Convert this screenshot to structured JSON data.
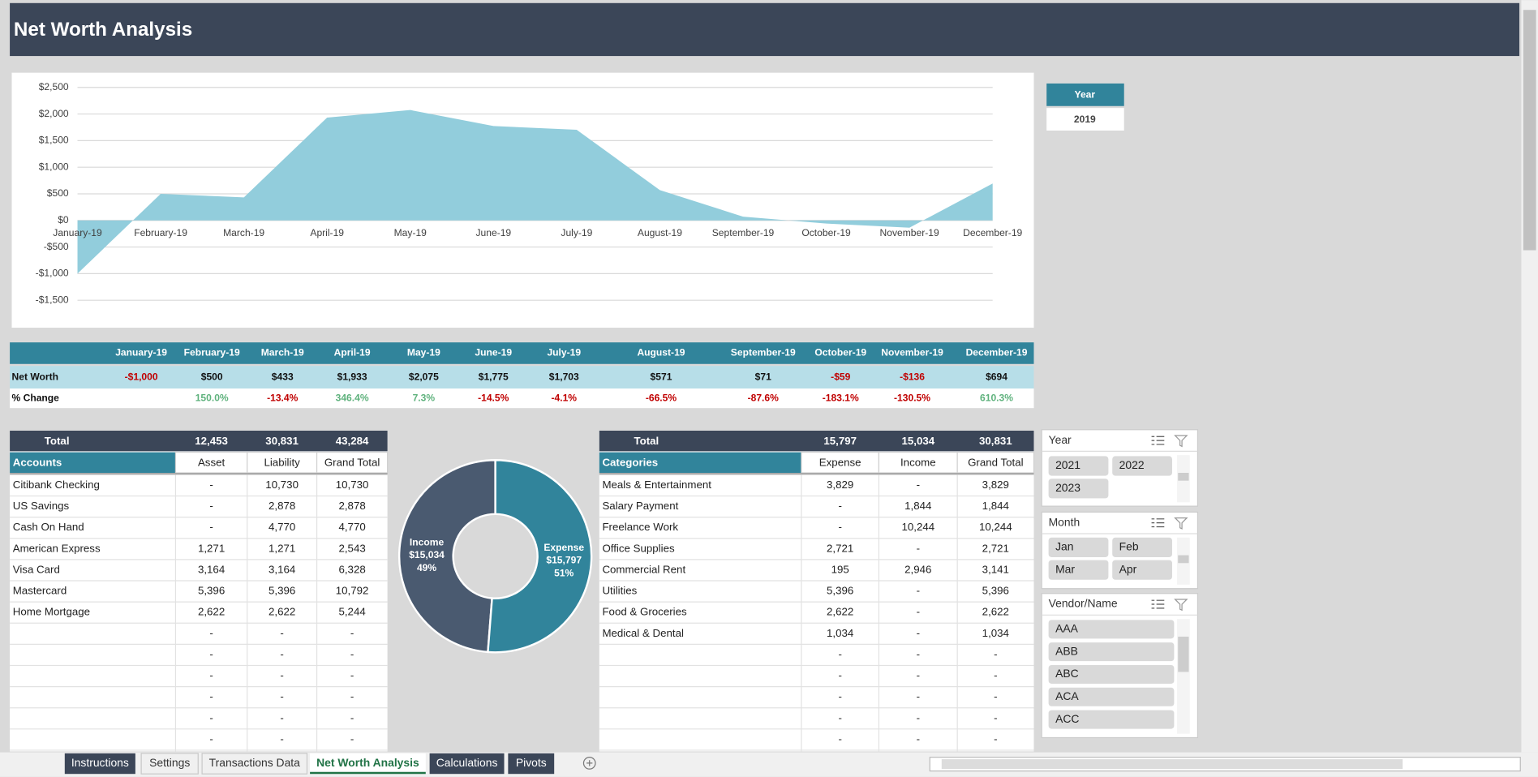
{
  "header": {
    "title": "Net Worth Analysis"
  },
  "chart_data": [
    {
      "type": "area",
      "categories": [
        "January-19",
        "February-19",
        "March-19",
        "April-19",
        "May-19",
        "June-19",
        "July-19",
        "August-19",
        "September-19",
        "October-19",
        "November-19",
        "December-19"
      ],
      "values": [
        -1000,
        500,
        433,
        1933,
        2075,
        1775,
        1703,
        571,
        71,
        -59,
        -136,
        694
      ],
      "color": "#92cddc",
      "ylim": [
        -1500,
        2500
      ],
      "yticks": [
        {
          "value": 2500,
          "label": "$2,500"
        },
        {
          "value": 2000,
          "label": "$2,000"
        },
        {
          "value": 1500,
          "label": "$1,500"
        },
        {
          "value": 1000,
          "label": "$1,000"
        },
        {
          "value": 500,
          "label": "$500"
        },
        {
          "value": 0,
          "label": "$0"
        },
        {
          "value": -500,
          "label": "-$500"
        },
        {
          "value": -1000,
          "label": "-$1,000"
        },
        {
          "value": -1500,
          "label": "-$1,500"
        }
      ],
      "grid": true
    },
    {
      "type": "pie",
      "categories": [
        "Income",
        "Expense"
      ],
      "values": [
        15034,
        15797
      ],
      "value_labels": [
        "$15,034",
        "$15,797"
      ],
      "percent_labels": [
        "49%",
        "51%"
      ],
      "colors": [
        "#4a5a70",
        "#31849b"
      ]
    }
  ],
  "year_filter": {
    "title": "Year",
    "value": "2019"
  },
  "net_worth_table": {
    "columns": [
      "January-19",
      "February-19",
      "March-19",
      "April-19",
      "May-19",
      "June-19",
      "July-19",
      "August-19",
      "September-19",
      "October-19",
      "November-19",
      "December-19"
    ],
    "rows": [
      {
        "label": "Net Worth",
        "cells": [
          "-$1,000",
          "$500",
          "$433",
          "$1,933",
          "$2,075",
          "$1,775",
          "$1,703",
          "$571",
          "$71",
          "-$59",
          "-$136",
          "$694"
        ]
      },
      {
        "label": "% Change",
        "cells": [
          null,
          "150.0%",
          "-13.4%",
          "346.4%",
          "7.3%",
          "-14.5%",
          "-4.1%",
          "-66.5%",
          "-87.6%",
          "-183.1%",
          "-130.5%",
          "610.3%"
        ]
      }
    ]
  },
  "accounts_table": {
    "total": [
      "Total",
      "12,453",
      "30,831",
      "43,284"
    ],
    "header": [
      "Accounts",
      "Asset",
      "Liability",
      "Grand Total"
    ],
    "rows": [
      [
        "Citibank Checking",
        "-",
        "10,730",
        "10,730"
      ],
      [
        "US Savings",
        "-",
        "2,878",
        "2,878"
      ],
      [
        "Cash On Hand",
        "-",
        "4,770",
        "4,770"
      ],
      [
        "American Express",
        "1,271",
        "1,271",
        "2,543"
      ],
      [
        "Visa Card",
        "3,164",
        "3,164",
        "6,328"
      ],
      [
        "Mastercard",
        "5,396",
        "5,396",
        "10,792"
      ],
      [
        "Home Mortgage",
        "2,622",
        "2,622",
        "5,244"
      ],
      [
        null,
        "-",
        "-",
        "-"
      ],
      [
        null,
        "-",
        "-",
        "-"
      ],
      [
        null,
        "-",
        "-",
        "-"
      ],
      [
        null,
        "-",
        "-",
        "-"
      ],
      [
        null,
        "-",
        "-",
        "-"
      ],
      [
        null,
        "-",
        "-",
        "-"
      ]
    ]
  },
  "categories_table": {
    "total": [
      "Total",
      "15,797",
      "15,034",
      "30,831"
    ],
    "header": [
      "Categories",
      "Expense",
      "Income",
      "Grand Total"
    ],
    "rows": [
      [
        "Meals & Entertainment",
        "3,829",
        "-",
        "3,829"
      ],
      [
        "Salary Payment",
        "-",
        "1,844",
        "1,844"
      ],
      [
        "Freelance Work",
        "-",
        "10,244",
        "10,244"
      ],
      [
        "Office Supplies",
        "2,721",
        "-",
        "2,721"
      ],
      [
        "Commercial Rent",
        "195",
        "2,946",
        "3,141"
      ],
      [
        "Utilities",
        "5,396",
        "-",
        "5,396"
      ],
      [
        "Food & Groceries",
        "2,622",
        "-",
        "2,622"
      ],
      [
        "Medical & Dental",
        "1,034",
        "-",
        "1,034"
      ],
      [
        null,
        "-",
        "-",
        "-"
      ],
      [
        null,
        "-",
        "-",
        "-"
      ],
      [
        null,
        "-",
        "-",
        "-"
      ],
      [
        null,
        "-",
        "-",
        "-"
      ],
      [
        null,
        "-",
        "-",
        "-"
      ]
    ]
  },
  "slicers": [
    {
      "title": "Year",
      "items": [
        "2021",
        "2022",
        "2023"
      ]
    },
    {
      "title": "Month",
      "items": [
        "Jan",
        "Feb",
        "Mar",
        "Apr"
      ]
    },
    {
      "title": "Vendor/Name",
      "items": [
        "AAA",
        "ABB",
        "ABC",
        "ACA",
        "ACC"
      ]
    }
  ],
  "tabs": [
    "Instructions",
    "Settings",
    "Transactions Data",
    "Net Worth Analysis",
    "Calculations",
    "Pivots"
  ]
}
